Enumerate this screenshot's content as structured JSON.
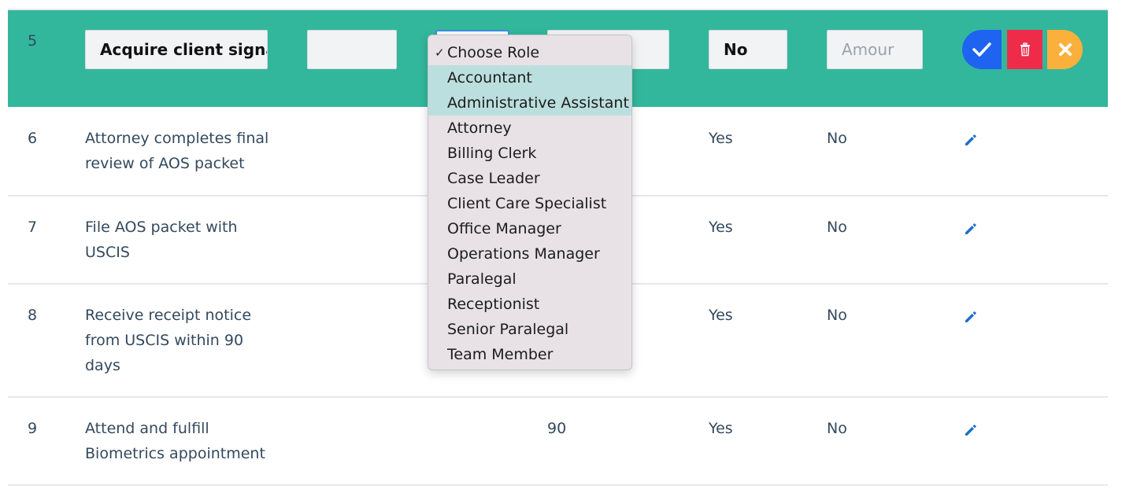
{
  "edit_row": {
    "number": "5",
    "task_name": "Acquire client signat",
    "requires_value": "No",
    "amount_placeholder": "Amour"
  },
  "rows": [
    {
      "number": "6",
      "task_lines": [
        "Attorney completes final",
        "review of AOS packet"
      ],
      "days": "",
      "required": "Yes",
      "billable": "No"
    },
    {
      "number": "7",
      "task_lines": [
        "File AOS packet with",
        "USCIS"
      ],
      "days": "",
      "required": "Yes",
      "billable": "No"
    },
    {
      "number": "8",
      "task_lines": [
        "Receive receipt notice",
        "from USCIS within 90",
        "days"
      ],
      "days": "",
      "required": "Yes",
      "billable": "No"
    },
    {
      "number": "9",
      "task_lines": [
        "Attend and fulfill",
        "Biometrics appointment"
      ],
      "days": "90",
      "required": "Yes",
      "billable": "No"
    }
  ],
  "role_dropdown": {
    "selected_mark": "✓",
    "options": [
      "Choose Role",
      "Accountant",
      "Administrative Assistant",
      "Attorney",
      "Billing Clerk",
      "Case Leader",
      "Client Care Specialist",
      "Office Manager",
      "Operations Manager",
      "Paralegal",
      "Receptionist",
      "Senior Paralegal",
      "Team Member"
    ]
  },
  "icons": {
    "save": "check-icon",
    "delete": "trash-icon",
    "cancel": "close-icon",
    "edit": "pencil-icon"
  },
  "colors": {
    "edit_row_bg": "#32b79c",
    "save_button": "#1e64f0",
    "delete_button": "#ef2b4a",
    "cancel_button": "#fbb03b",
    "edit_icon": "#1f6fc9"
  }
}
